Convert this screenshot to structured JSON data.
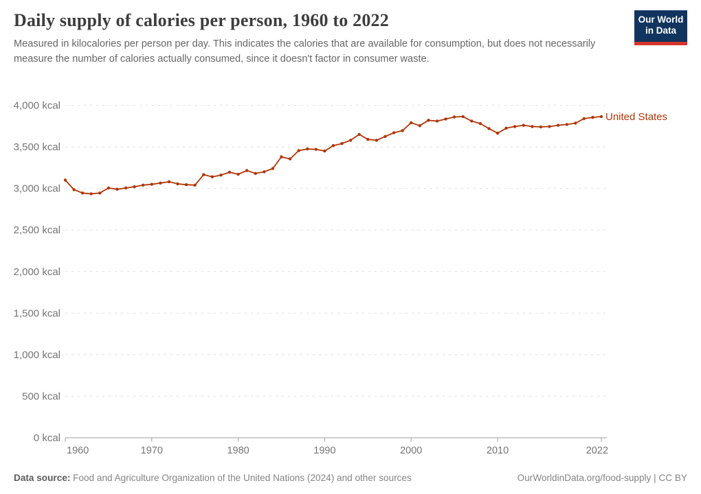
{
  "header": {
    "title": "Daily supply of calories per person, 1960 to 2022",
    "subtitle": "Measured in kilocalories per person per day. This indicates the calories that are available for consumption, but does not necessarily measure the number of calories actually consumed, since it doesn't factor in consumer waste.",
    "logo": {
      "line1": "Our World",
      "line2": "in Data"
    }
  },
  "palette": {
    "series_color": "#B13507",
    "grid_color": "#dedede",
    "axis_color": "#b0b0b0",
    "tick_label_color": "#757575",
    "logo_bg": "#12355f",
    "logo_accent": "#d8352a"
  },
  "chart_data": {
    "type": "line",
    "title": "Daily supply of calories per person, 1960 to 2022",
    "xlabel": "",
    "ylabel": "kcal",
    "xlim": [
      1960,
      2022
    ],
    "ylim": [
      0,
      4000
    ],
    "grid": "dashed-horizontal",
    "legend_position": "line-end-label",
    "x_ticks": [
      1960,
      1970,
      1980,
      1990,
      2000,
      2010,
      2022
    ],
    "x_tick_labels": [
      "1960",
      "1970",
      "1980",
      "1990",
      "2000",
      "2010",
      "2022"
    ],
    "y_ticks": [
      0,
      500,
      1000,
      1500,
      2000,
      2500,
      3000,
      3500,
      4000
    ],
    "y_tick_labels": [
      "0 kcal",
      "500 kcal",
      "1,000 kcal",
      "1,500 kcal",
      "2,000 kcal",
      "2,500 kcal",
      "3,000 kcal",
      "3,500 kcal",
      "4,000 kcal"
    ],
    "series": [
      {
        "name": "United States",
        "color": "#B13507",
        "x": [
          1960,
          1961,
          1962,
          1963,
          1964,
          1965,
          1966,
          1967,
          1968,
          1969,
          1970,
          1971,
          1972,
          1973,
          1974,
          1975,
          1976,
          1977,
          1978,
          1979,
          1980,
          1981,
          1982,
          1983,
          1984,
          1985,
          1986,
          1987,
          1988,
          1989,
          1990,
          1991,
          1992,
          1993,
          1994,
          1995,
          1996,
          1997,
          1998,
          1999,
          2000,
          2001,
          2002,
          2003,
          2004,
          2005,
          2006,
          2007,
          2008,
          2009,
          2010,
          2011,
          2012,
          2013,
          2014,
          2015,
          2016,
          2017,
          2018,
          2019,
          2020,
          2021,
          2022
        ],
        "values": [
          3100,
          2985,
          2945,
          2935,
          2945,
          3005,
          2990,
          3005,
          3020,
          3040,
          3050,
          3065,
          3080,
          3055,
          3045,
          3040,
          3165,
          3140,
          3160,
          3195,
          3170,
          3215,
          3180,
          3200,
          3240,
          3380,
          3355,
          3455,
          3475,
          3470,
          3450,
          3515,
          3540,
          3580,
          3650,
          3590,
          3580,
          3625,
          3670,
          3695,
          3790,
          3755,
          3820,
          3810,
          3835,
          3860,
          3865,
          3810,
          3780,
          3720,
          3665,
          3725,
          3745,
          3760,
          3745,
          3740,
          3745,
          3760,
          3770,
          3785,
          3840,
          3855,
          3865
        ]
      }
    ]
  },
  "footer": {
    "source_label": "Data source:",
    "source_text": " Food and Agriculture Organization of the United Nations (2024) and other sources",
    "link_text": "OurWorldinData.org/food-supply | CC BY"
  }
}
